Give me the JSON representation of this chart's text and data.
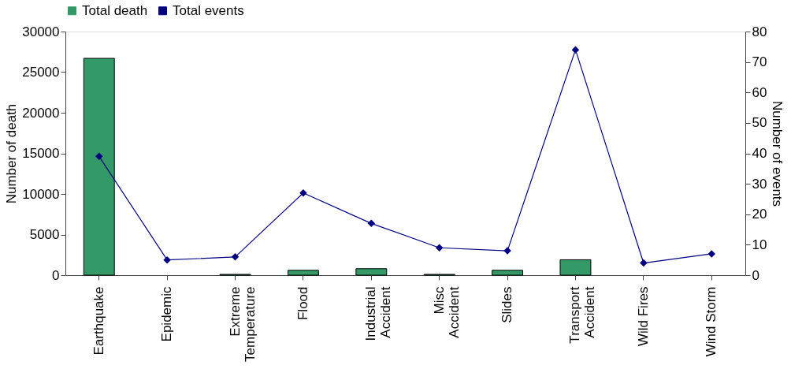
{
  "chart_data": {
    "type": "bar",
    "categories": [
      "Earthquake",
      "Epidemic",
      "Extreme\nTemperature",
      "Flood",
      "Industrial\nAccident",
      "Misc\nAccident",
      "Slides",
      "Transport\nAccident",
      "Wild Fires",
      "Wind Storm"
    ],
    "series": [
      {
        "name": "Total death",
        "color": "#339966",
        "values": [
          26700,
          0,
          100,
          600,
          800,
          100,
          600,
          1900,
          0,
          0
        ]
      },
      {
        "name": "Total events",
        "type": "line",
        "axis": "y2",
        "color": "#000080",
        "marker": "diamond",
        "values": [
          39,
          5,
          6,
          27,
          17,
          9,
          8,
          74,
          4,
          7
        ]
      }
    ],
    "ylabel": "Number of death",
    "y2label": "Number of events",
    "ylim": [
      0,
      30000
    ],
    "yticks": [
      0,
      5000,
      10000,
      15000,
      20000,
      25000,
      30000
    ],
    "y2lim": [
      0,
      80
    ],
    "y2ticks": [
      0,
      10,
      20,
      30,
      40,
      50,
      60,
      70,
      80
    ],
    "legend": "top",
    "grid": false
  }
}
